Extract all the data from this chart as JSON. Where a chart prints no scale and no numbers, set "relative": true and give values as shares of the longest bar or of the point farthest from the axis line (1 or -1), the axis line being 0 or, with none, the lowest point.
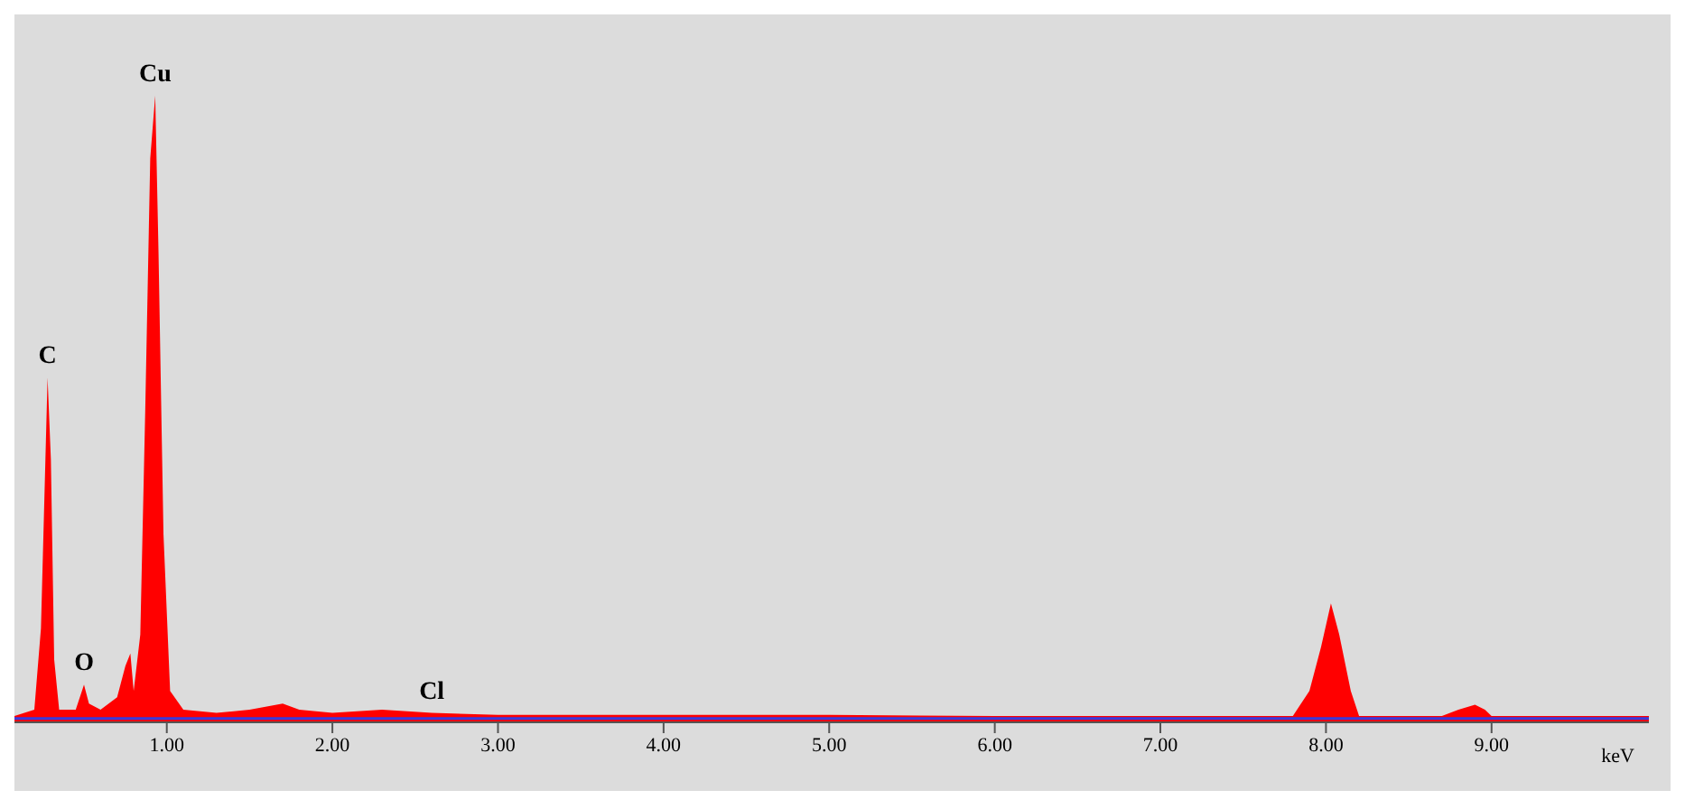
{
  "chart_data": {
    "type": "area",
    "relative": true,
    "xlabel": "keV",
    "xlim": [
      0.08,
      9.95
    ],
    "xticks": [
      {
        "value": 1,
        "label": "1.00"
      },
      {
        "value": 2,
        "label": "2.00"
      },
      {
        "value": 3,
        "label": "3.00"
      },
      {
        "value": 4,
        "label": "4.00"
      },
      {
        "value": 5,
        "label": "5.00"
      },
      {
        "value": 6,
        "label": "6.00"
      },
      {
        "value": 7,
        "label": "7.00"
      },
      {
        "value": 8,
        "label": "8.00"
      },
      {
        "value": 9,
        "label": "9.00"
      }
    ],
    "grid": false,
    "series": [
      {
        "color": "#ff0000",
        "x": [
          0.08,
          0.2,
          0.24,
          0.27,
          0.28,
          0.3,
          0.32,
          0.35,
          0.45,
          0.5,
          0.53,
          0.6,
          0.7,
          0.75,
          0.78,
          0.8,
          0.84,
          0.87,
          0.9,
          0.93,
          0.95,
          0.98,
          1.02,
          1.1,
          1.3,
          1.5,
          1.7,
          1.8,
          2.0,
          2.3,
          2.6,
          3.0,
          4.0,
          5.0,
          6.0,
          7.0,
          7.8,
          7.9,
          7.97,
          8.03,
          8.08,
          8.15,
          8.2,
          8.7,
          8.8,
          8.9,
          8.96,
          9.0,
          9.95
        ],
        "values": [
          0.01,
          0.02,
          0.15,
          0.45,
          0.55,
          0.42,
          0.1,
          0.02,
          0.02,
          0.06,
          0.03,
          0.02,
          0.04,
          0.09,
          0.11,
          0.05,
          0.14,
          0.5,
          0.9,
          1,
          0.75,
          0.3,
          0.05,
          0.02,
          0.015,
          0.02,
          0.03,
          0.02,
          0.015,
          0.02,
          0.015,
          0.012,
          0.012,
          0.012,
          0.01,
          0.01,
          0.01,
          0.05,
          0.12,
          0.19,
          0.14,
          0.05,
          0.01,
          0.01,
          0.02,
          0.028,
          0.02,
          0.01,
          0.01
        ]
      },
      {
        "type": "line",
        "color": "#3a3adc",
        "x": [
          0.08,
          9.95
        ],
        "values": [
          0.006,
          0.006
        ]
      }
    ],
    "annotations": [
      {
        "text": "C",
        "x": 0.28,
        "y": 0.55
      },
      {
        "text": "O",
        "x": 0.5,
        "y": 0.06
      },
      {
        "text": "Cu",
        "x": 0.93,
        "y": 1
      },
      {
        "text": "Cl",
        "x": 2.6,
        "y": 0.015
      }
    ]
  }
}
